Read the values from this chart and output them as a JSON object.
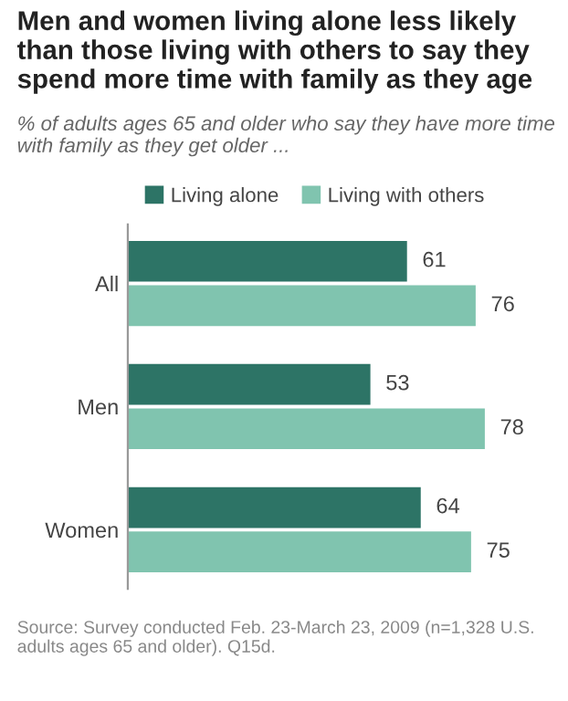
{
  "chart_data": {
    "type": "bar",
    "orientation": "horizontal",
    "title": "Men and women living alone less likely than those living with others to say they spend more time with family as they age",
    "subtitle": "% of adults ages 65 and older who say they have more time with family as they get older ...",
    "categories": [
      "All",
      "Men",
      "Women"
    ],
    "series": [
      {
        "name": "Living alone",
        "color": "#2d7466",
        "values": [
          61,
          53,
          64
        ]
      },
      {
        "name": "Living with others",
        "color": "#80c4af",
        "values": [
          76,
          78,
          75
        ]
      }
    ],
    "data_labels": true,
    "legend": "top",
    "grid": false,
    "annotations": [
      "Source: Survey conducted Feb. 23-March 23, 2009 (n=1,328 U.S. adults ages 65 and older). Q15d."
    ]
  }
}
